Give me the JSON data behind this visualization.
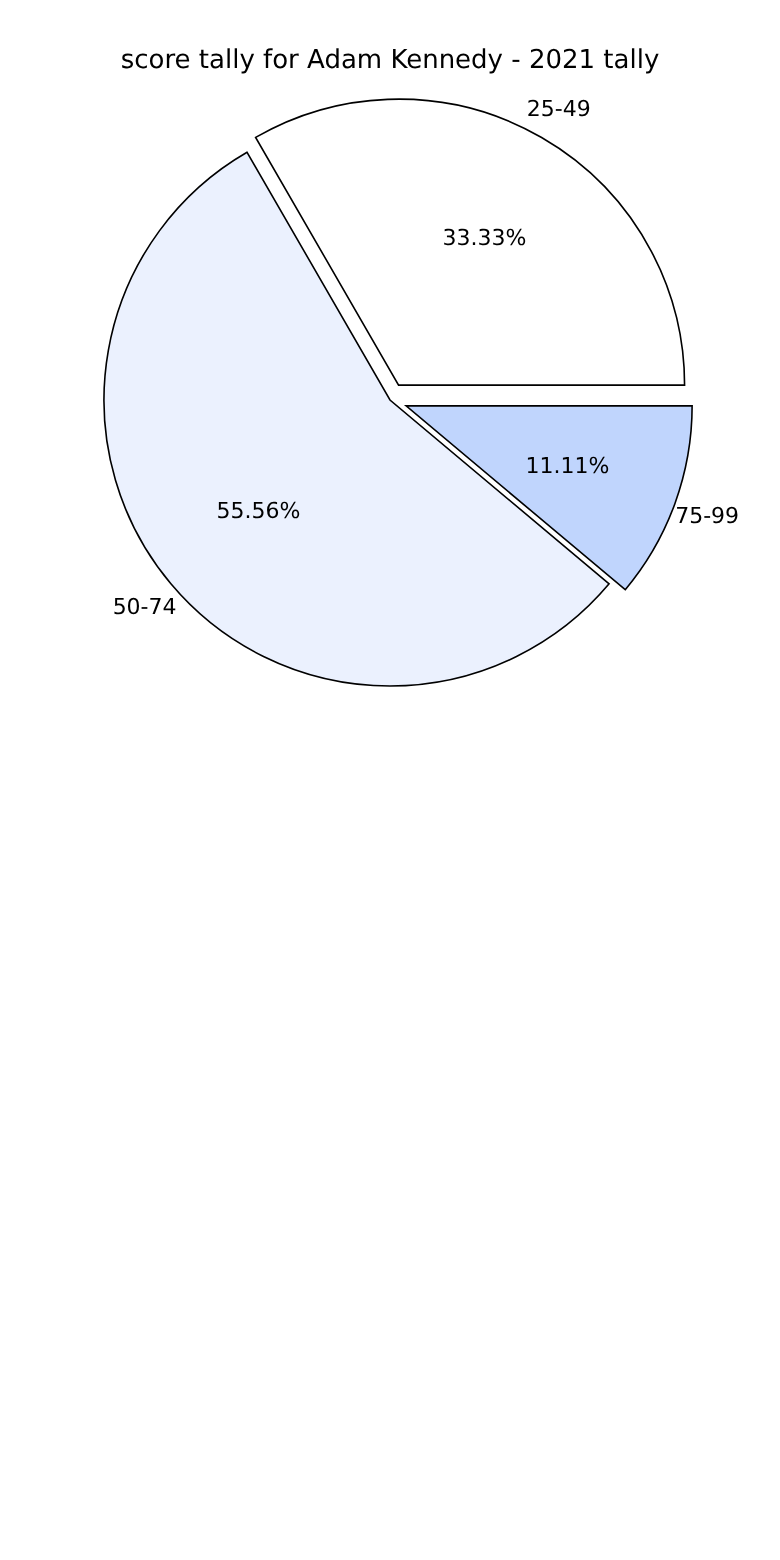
{
  "chart_data": {
    "type": "pie",
    "title": "score tally for Adam Kennedy - 2021 tally",
    "categories": [
      "25-49",
      "50-74",
      "75-99"
    ],
    "values": [
      33.33,
      55.56,
      11.11
    ],
    "colors": [
      "#ffffff",
      "#ebf1fe",
      "#c0d5fd"
    ],
    "value_labels": [
      "33.33%",
      "55.56%",
      "11.11%"
    ]
  }
}
